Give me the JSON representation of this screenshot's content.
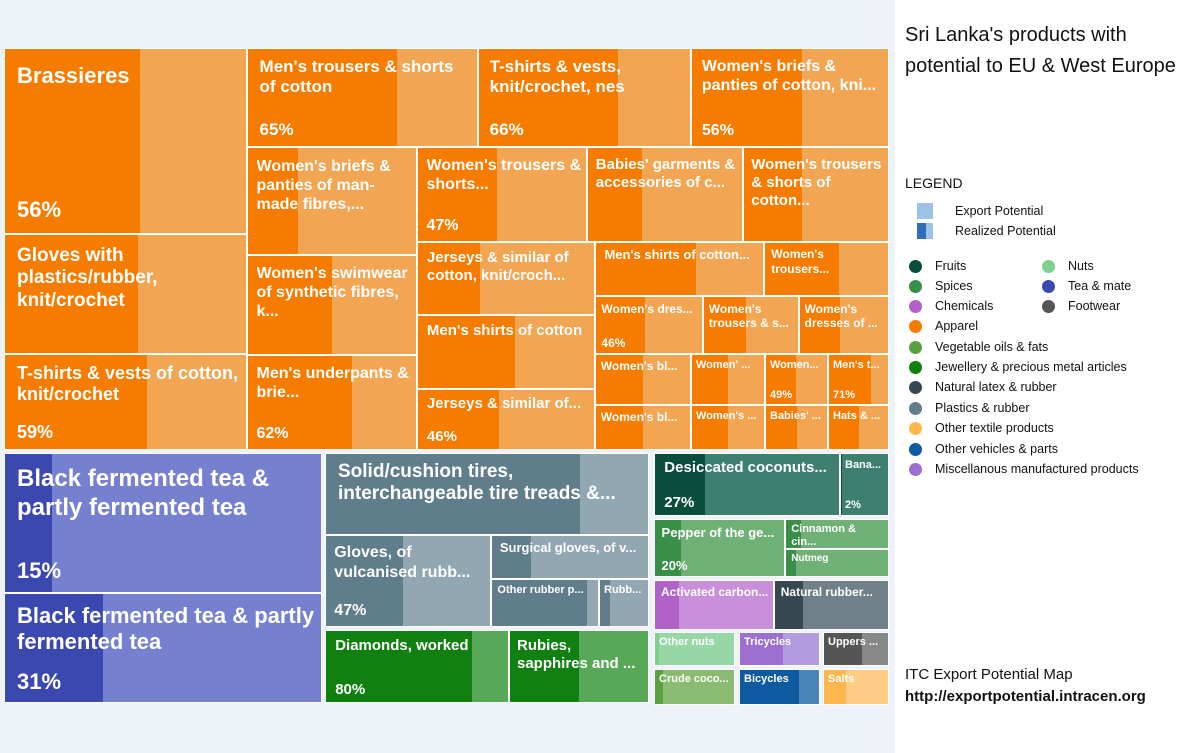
{
  "chart_data": {
    "type": "treemap",
    "title": "Sri Lanka's products with potential to EU & West Europe",
    "legend_title": "LEGEND",
    "legend_potential": [
      {
        "label": "Export Potential",
        "key": "ep"
      },
      {
        "label": "Realized Potential",
        "key": "rp"
      }
    ],
    "categories": [
      {
        "name": "Fruits",
        "color": "#0b4d3c"
      },
      {
        "name": "Nuts",
        "color": "#7fcf8f"
      },
      {
        "name": "Spices",
        "color": "#3a8f48"
      },
      {
        "name": "Tea & mate",
        "color": "#3a48b0"
      },
      {
        "name": "Chemicals",
        "color": "#b062c8"
      },
      {
        "name": "Footwear",
        "color": "#555555"
      },
      {
        "name": "Apparel",
        "color": "#f57c00"
      },
      {
        "name": "Vegetable oils & fats",
        "color": "#5aa040"
      },
      {
        "name": "Jewellery & precious metal articles",
        "color": "#108010"
      },
      {
        "name": "Natural latex & rubber",
        "color": "#37474f"
      },
      {
        "name": "Plastics & rubber",
        "color": "#607d8b"
      },
      {
        "name": "Other textile products",
        "color": "#ffb74d"
      },
      {
        "name": "Other vehicles & parts",
        "color": "#0d5aa0"
      },
      {
        "name": "Miscellanous manufactured products",
        "color": "#9c6fd0"
      }
    ],
    "products": [
      {
        "label": "Brassieres",
        "pct": "56%",
        "realized": 0.56,
        "color": "#f57c00",
        "light": "#f2a553",
        "fs": 22
      },
      {
        "label": "Men's trousers & shorts of cotton",
        "pct": "65%",
        "realized": 0.65,
        "color": "#f57c00",
        "light": "#f2a553",
        "fs": 17
      },
      {
        "label": "T-shirts & vests, knit/crochet, nes",
        "pct": "66%",
        "realized": 0.66,
        "color": "#f57c00",
        "light": "#f2a553",
        "fs": 17
      },
      {
        "label": "Women's briefs & panties of cotton, kni...",
        "pct": "56%",
        "realized": 0.56,
        "color": "#f57c00",
        "light": "#f2a553",
        "fs": 16
      },
      {
        "label": "Women's briefs & panties of man-made fibres,...",
        "pct": "",
        "realized": 0.3,
        "color": "#f57c00",
        "light": "#f2a553",
        "fs": 16
      },
      {
        "label": "Women's trousers & shorts...",
        "pct": "47%",
        "realized": 0.47,
        "color": "#f57c00",
        "light": "#f2a553",
        "fs": 16
      },
      {
        "label": "Babies' garments & accessories of c...",
        "pct": "",
        "realized": 0.35,
        "color": "#f57c00",
        "light": "#f2a553",
        "fs": 15
      },
      {
        "label": "Women's trousers & shorts of cotton...",
        "pct": "",
        "realized": 0.4,
        "color": "#f57c00",
        "light": "#f2a553",
        "fs": 15
      },
      {
        "label": "Gloves with plastics/rubber, knit/crochet",
        "pct": "",
        "realized": 0.55,
        "color": "#f57c00",
        "light": "#f2a553",
        "fs": 19
      },
      {
        "label": "Women's swimwear of synthetic fibres, k...",
        "pct": "",
        "realized": 0.5,
        "color": "#f57c00",
        "light": "#f2a553",
        "fs": 16
      },
      {
        "label": "Jerseys & similar of cotton, knit/croch...",
        "pct": "",
        "realized": 0.35,
        "color": "#f57c00",
        "light": "#f2a553",
        "fs": 15
      },
      {
        "label": "Men's shirts of cotton...",
        "pct": "",
        "realized": 0.6,
        "color": "#f57c00",
        "light": "#f2a553",
        "fs": 13
      },
      {
        "label": "Women's trousers...",
        "pct": "",
        "realized": 0.6,
        "color": "#f57c00",
        "light": "#f2a553",
        "fs": 12
      },
      {
        "label": "Women's dres...",
        "pct": "46%",
        "realized": 0.46,
        "color": "#f57c00",
        "light": "#f2a553",
        "fs": 12
      },
      {
        "label": "Women's trousers & s...",
        "pct": "",
        "realized": 0.45,
        "color": "#f57c00",
        "light": "#f2a553",
        "fs": 12
      },
      {
        "label": "Women's dresses of ...",
        "pct": "",
        "realized": 0.45,
        "color": "#f57c00",
        "light": "#f2a553",
        "fs": 12
      },
      {
        "label": "Men's shirts of cotton",
        "pct": "",
        "realized": 0.55,
        "color": "#f57c00",
        "light": "#f2a553",
        "fs": 15
      },
      {
        "label": "Women's bl...",
        "pct": "",
        "realized": 0.5,
        "color": "#f57c00",
        "light": "#f2a553",
        "fs": 12
      },
      {
        "label": "Women' ...",
        "pct": "",
        "realized": 0.5,
        "color": "#f57c00",
        "light": "#f2a553",
        "fs": 11
      },
      {
        "label": "Women...",
        "pct": "49%",
        "realized": 0.49,
        "color": "#f57c00",
        "light": "#f2a553",
        "fs": 11
      },
      {
        "label": "Men's t...",
        "pct": "71%",
        "realized": 0.71,
        "color": "#f57c00",
        "light": "#f2a553",
        "fs": 11
      },
      {
        "label": "T-shirts & vests of cotton, knit/crochet",
        "pct": "59%",
        "realized": 0.59,
        "color": "#f57c00",
        "light": "#f2a553",
        "fs": 18
      },
      {
        "label": "Men's underpants & brie...",
        "pct": "62%",
        "realized": 0.62,
        "color": "#f57c00",
        "light": "#f2a553",
        "fs": 16
      },
      {
        "label": "Jerseys & similar of...",
        "pct": "46%",
        "realized": 0.46,
        "color": "#f57c00",
        "light": "#f2a553",
        "fs": 15
      },
      {
        "label": "Women's bl...",
        "pct": "",
        "realized": 0.5,
        "color": "#f57c00",
        "light": "#f2a553",
        "fs": 12
      },
      {
        "label": "Women's ...",
        "pct": "",
        "realized": 0.5,
        "color": "#f57c00",
        "light": "#f2a553",
        "fs": 11
      },
      {
        "label": "Babies' ...",
        "pct": "",
        "realized": 0.5,
        "color": "#f57c00",
        "light": "#f2a553",
        "fs": 11
      },
      {
        "label": "Hats & ...",
        "pct": "",
        "realized": 0.5,
        "color": "#f57c00",
        "light": "#f2a553",
        "fs": 11
      },
      {
        "label": "Black fermented tea & partly fermented tea",
        "pct": "15%",
        "realized": 0.15,
        "color": "#3a48b0",
        "light": "#7581cf",
        "fs": 24
      },
      {
        "label": "Black fermented tea & partly fermented tea",
        "pct": "31%",
        "realized": 0.31,
        "color": "#3a48b0",
        "light": "#7581cf",
        "fs": 22
      },
      {
        "label": "Solid/cushion tires, interchangeable tire treads &...",
        "pct": "",
        "realized": 0.79,
        "color": "#607d8b",
        "light": "#93a7b2",
        "fs": 19
      },
      {
        "label": "Gloves, of vulcanised rubb...",
        "pct": "47%",
        "realized": 0.47,
        "color": "#607d8b",
        "light": "#93a7b2",
        "fs": 16
      },
      {
        "label": "Surgical gloves, of v...",
        "pct": "",
        "realized": 0.25,
        "color": "#607d8b",
        "light": "#93a7b2",
        "fs": 13
      },
      {
        "label": "Other rubber p...",
        "pct": "",
        "realized": 0.9,
        "color": "#607d8b",
        "light": "#93a7b2",
        "fs": 11
      },
      {
        "label": "Rubb...",
        "pct": "",
        "realized": 0.2,
        "color": "#607d8b",
        "light": "#93a7b2",
        "fs": 11
      },
      {
        "label": "Diamonds, worked",
        "pct": "80%",
        "realized": 0.8,
        "color": "#108010",
        "light": "#57a957",
        "fs": 15
      },
      {
        "label": "Rubies, sapphires and ...",
        "pct": "",
        "realized": 0.5,
        "color": "#108010",
        "light": "#57a957",
        "fs": 15
      },
      {
        "label": "Desiccated coconuts...",
        "pct": "27%",
        "realized": 0.27,
        "color": "#0b4d3c",
        "light": "#3f7f6f",
        "fs": 15
      },
      {
        "label": "Bana...",
        "pct": "2%",
        "realized": 0.02,
        "color": "#0b4d3c",
        "light": "#3f7f6f",
        "fs": 11
      },
      {
        "label": "Pepper of the ge...",
        "pct": "20%",
        "realized": 0.2,
        "color": "#3a8f48",
        "light": "#6fb076",
        "fs": 13
      },
      {
        "label": "Cinnamon & cin...",
        "pct": "",
        "realized": 0.15,
        "color": "#3a8f48",
        "light": "#6fb076",
        "fs": 11
      },
      {
        "label": "Nutmeg",
        "pct": "",
        "realized": 0.1,
        "color": "#3a8f48",
        "light": "#6fb076",
        "fs": 10
      },
      {
        "label": "Activated carbon...",
        "pct": "",
        "realized": 0.2,
        "color": "#b062c8",
        "light": "#c98fdb",
        "fs": 12
      },
      {
        "label": "Natural rubber...",
        "pct": "",
        "realized": 0.25,
        "color": "#37474f",
        "light": "#6f8088",
        "fs": 12
      },
      {
        "label": "Other nuts",
        "pct": "",
        "realized": 0.05,
        "color": "#7fcf8f",
        "light": "#97d7a5",
        "fs": 11
      },
      {
        "label": "Tricycles",
        "pct": "",
        "realized": 0.55,
        "color": "#9c6fd0",
        "light": "#b39be0",
        "fs": 11
      },
      {
        "label": "Uppers ...",
        "pct": "",
        "realized": 0.6,
        "color": "#555555",
        "light": "#888888",
        "fs": 11
      },
      {
        "label": "Crude coco...",
        "pct": "",
        "realized": 0.1,
        "color": "#5aa040",
        "light": "#8abb70",
        "fs": 11
      },
      {
        "label": "Bicycles",
        "pct": "",
        "realized": 0.75,
        "color": "#0d5aa0",
        "light": "#4a84b8",
        "fs": 11
      },
      {
        "label": "Salts",
        "pct": "",
        "realized": 0.35,
        "color": "#ffb74d",
        "light": "#ffcd85",
        "fs": 11
      }
    ]
  },
  "footer": {
    "source": "ITC Export Potential Map",
    "url": "http://exportpotential.intracen.org"
  }
}
